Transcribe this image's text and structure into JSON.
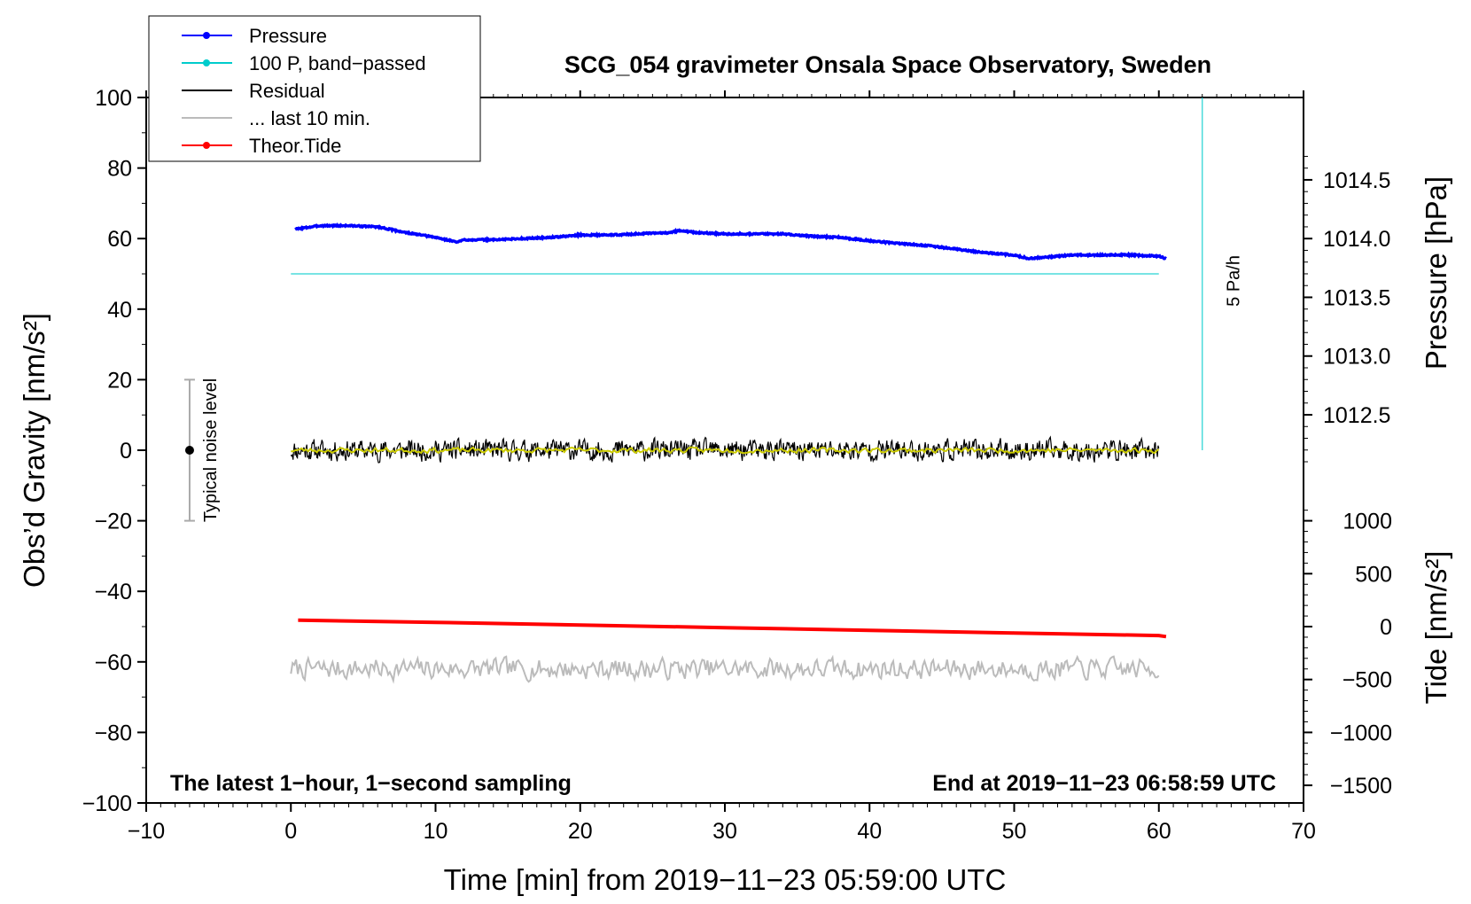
{
  "chart_data": {
    "type": "line",
    "title": "SCG_054 gravimeter Onsala Space Observatory, Sweden",
    "xlabel": "Time [min] from 2019−11−23 05:59:00 UTC",
    "ylabel_left": "Obs’d Gravity [nm/s²]",
    "ylabel_right_top": "Pressure [hPa]",
    "ylabel_right_bottom": "Tide [nm/s²]",
    "xlim": [
      -10,
      70
    ],
    "ylim": [
      -100,
      100
    ],
    "x_ticks": [
      -10,
      0,
      10,
      20,
      30,
      40,
      50,
      60,
      70
    ],
    "x_tick_labels": [
      "−10",
      "0",
      "10",
      "20",
      "30",
      "40",
      "50",
      "60",
      "70"
    ],
    "y_ticks": [
      -100,
      -80,
      -60,
      -40,
      -20,
      0,
      20,
      40,
      60,
      80,
      100
    ],
    "y_tick_labels": [
      "−100",
      "−80",
      "−60",
      "−40",
      "−20",
      "0",
      "20",
      "40",
      "60",
      "80",
      "100"
    ],
    "pressure_axis": {
      "ticks": [
        1012.5,
        1013.0,
        1013.5,
        1014.0,
        1014.5
      ],
      "tick_labels": [
        "1012.5",
        "1013.0",
        "1013.5",
        "1014.0",
        "1014.5"
      ],
      "gravity_at_1014": 60,
      "gravity_per_hPa": 33.3
    },
    "tide_axis": {
      "ticks": [
        -1500,
        -1000,
        -500,
        0,
        500,
        1000
      ],
      "tick_labels": [
        "−1500",
        "−1000",
        "−500",
        "0",
        "500",
        "1000"
      ],
      "gravity_at_zero": -50,
      "gravity_per_unit": 0.03
    },
    "legend": {
      "position": "top-left",
      "entries": [
        {
          "label": "Pressure",
          "color": "#0000ff",
          "marker": true
        },
        {
          "label": "100 P, band−passed",
          "color": "#00cccc",
          "marker": true
        },
        {
          "label": "Residual",
          "color": "#000000",
          "marker": false
        },
        {
          "label": "... last 10 min.",
          "color": "#bbbbbb",
          "marker": false
        },
        {
          "label": "Theor.Tide",
          "color": "#ff0000",
          "marker": true
        }
      ]
    },
    "series": [
      {
        "name": "Pressure",
        "unit": "hPa",
        "color": "#0000ff",
        "x": [
          0.3,
          2,
          4,
          6,
          8,
          10,
          11.5,
          12,
          14,
          16,
          18,
          20,
          22,
          24,
          26,
          27,
          28,
          30,
          32,
          34,
          36,
          38,
          40,
          42,
          44,
          46,
          48,
          50,
          51,
          52,
          54,
          56,
          58,
          60,
          60.5
        ],
        "values": [
          1014.08,
          1014.11,
          1014.11,
          1014.1,
          1014.05,
          1014.01,
          1013.97,
          1013.99,
          1013.99,
          1014.0,
          1014.01,
          1014.03,
          1014.03,
          1014.04,
          1014.05,
          1014.07,
          1014.05,
          1014.04,
          1014.04,
          1014.04,
          1014.02,
          1014.01,
          1013.98,
          1013.96,
          1013.94,
          1013.91,
          1013.88,
          1013.86,
          1013.83,
          1013.84,
          1013.86,
          1013.86,
          1013.86,
          1013.85,
          1013.83
        ]
      },
      {
        "name": "100 P, band−passed",
        "unit": "nm/s²",
        "color": "#00cccc",
        "x": [
          0,
          60
        ],
        "values": [
          50,
          50
        ]
      },
      {
        "name": "Residual",
        "unit": "nm/s²",
        "color": "#000000",
        "x": [
          0,
          60
        ],
        "values": [
          0,
          0
        ],
        "noise_amplitude": 4
      },
      {
        "name": "Residual (smoothed)",
        "unit": "nm/s²",
        "color": "#cccc00",
        "x": [
          0,
          60
        ],
        "values": [
          0,
          0
        ],
        "noise_amplitude": 1
      },
      {
        "name": "... last 10 min.",
        "unit": "nm/s²",
        "color": "#bbbbbb",
        "x": [
          0,
          60
        ],
        "values": [
          -62,
          -62
        ],
        "noise_amplitude": 4
      },
      {
        "name": "Theor.Tide",
        "unit": "nm/s²",
        "color": "#ff0000",
        "x": [
          0.5,
          10,
          20,
          30,
          40,
          50,
          60,
          60.5
        ],
        "values": [
          60,
          40,
          15,
          -10,
          -35,
          -60,
          -85,
          -95
        ]
      }
    ],
    "noise_bar": {
      "label": "Typical noise level",
      "x": -7,
      "center": 0,
      "range": [
        -20,
        20
      ]
    },
    "drift_line": {
      "label": "5 Pa/h",
      "x": 63,
      "range": [
        0,
        100
      ]
    },
    "footer_left": "The latest 1−hour, 1−second sampling",
    "footer_right": "End at 2019−11−23 06:58:59 UTC"
  }
}
